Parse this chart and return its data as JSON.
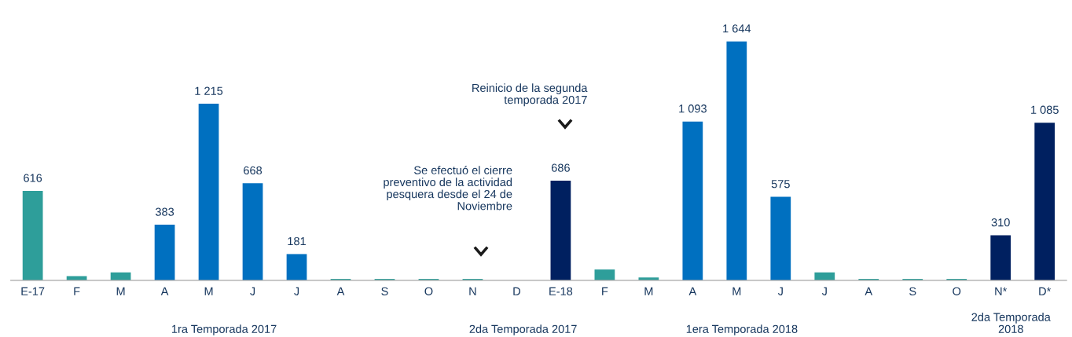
{
  "chart_data": {
    "type": "bar",
    "categories": [
      "E-17",
      "F",
      "M",
      "A",
      "M",
      "J",
      "J",
      "A",
      "S",
      "O",
      "N",
      "D",
      "E-18",
      "F",
      "M",
      "A",
      "M",
      "J",
      "J",
      "A",
      "S",
      "O",
      "N*",
      "D*"
    ],
    "values": [
      616,
      30,
      55,
      383,
      1215,
      668,
      181,
      10,
      10,
      10,
      10,
      null,
      686,
      75,
      20,
      1093,
      1644,
      575,
      55,
      10,
      10,
      10,
      310,
      1085
    ],
    "colors": [
      "#2e9e9a",
      "#2e9e9a",
      "#2e9e9a",
      "#0070c0",
      "#0070c0",
      "#0070c0",
      "#0070c0",
      "#2e9e9a",
      "#2e9e9a",
      "#2e9e9a",
      "#2e9e9a",
      "#2e9e9a",
      "#002060",
      "#2e9e9a",
      "#2e9e9a",
      "#0070c0",
      "#0070c0",
      "#0070c0",
      "#2e9e9a",
      "#2e9e9a",
      "#2e9e9a",
      "#2e9e9a",
      "#002060",
      "#002060"
    ],
    "value_labels": [
      "616",
      null,
      null,
      "383",
      "1 215",
      "668",
      "181",
      null,
      null,
      null,
      null,
      null,
      "686",
      null,
      null,
      "1 093",
      "1 644",
      "575",
      null,
      null,
      null,
      null,
      "310",
      "1 085"
    ],
    "annotations": [
      "1ra Temporada 2017",
      "2da Temporada 2017",
      "1era Temporada 2018",
      "2da Temporada\n2018",
      "Se efectuó el cierre\npreventivo de la actividad\npesquera desde el 24 de\nNoviembre",
      "Reinicio de la segunda\ntemporada 2017"
    ],
    "grid": false,
    "legend": false
  }
}
